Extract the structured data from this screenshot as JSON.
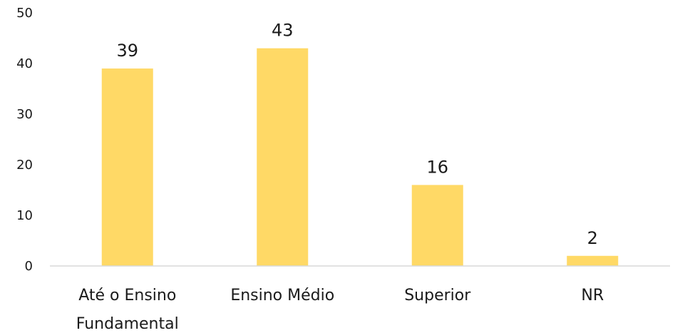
{
  "chart_data": {
    "type": "bar",
    "categories": [
      [
        "Até o Ensino",
        "Fundamental"
      ],
      [
        "Ensino Médio"
      ],
      [
        "Superior"
      ],
      [
        "NR"
      ]
    ],
    "values": [
      39,
      43,
      16,
      2
    ],
    "data_labels": [
      "39",
      "43",
      "16",
      "2"
    ],
    "y_ticks": [
      "0",
      "10",
      "20",
      "30",
      "40",
      "50"
    ],
    "ylim": [
      0,
      50
    ],
    "grid": false,
    "legend": "none",
    "bar_color": "#FFD966",
    "axis_color": "#d9d9d9"
  }
}
